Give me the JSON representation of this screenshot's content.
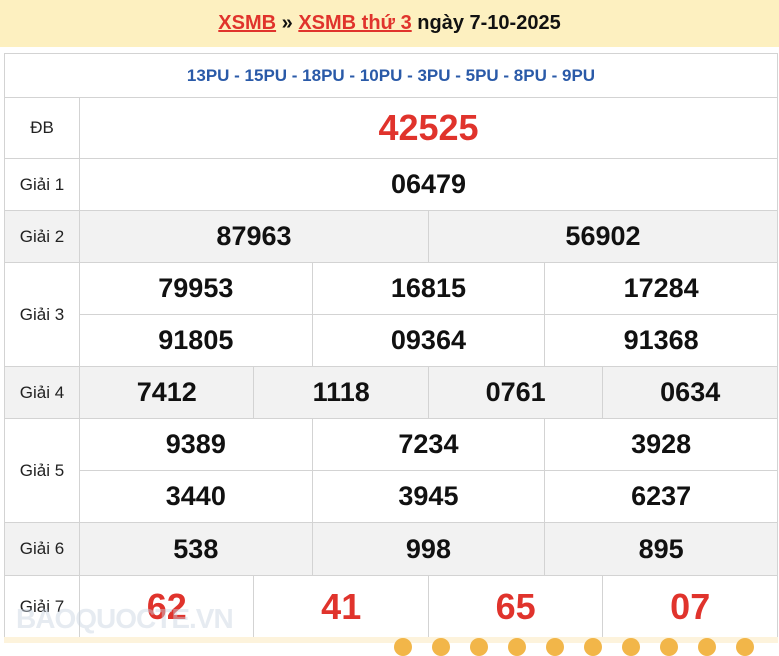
{
  "header": {
    "link1": "XSMB",
    "sep": "»",
    "link2": "XSMB thứ 3",
    "date_text": "ngày 7-10-2025"
  },
  "codes": "13PU - 15PU - 18PU - 10PU - 3PU - 5PU - 8PU - 9PU",
  "prizes": {
    "db": {
      "label": "ĐB",
      "numbers": [
        "42525"
      ]
    },
    "g1": {
      "label": "Giải 1",
      "numbers": [
        "06479"
      ]
    },
    "g2": {
      "label": "Giải 2",
      "numbers": [
        "87963",
        "56902"
      ]
    },
    "g3": {
      "label": "Giải 3",
      "numbers": [
        "79953",
        "16815",
        "17284",
        "91805",
        "09364",
        "91368"
      ]
    },
    "g4": {
      "label": "Giải 4",
      "numbers": [
        "7412",
        "1118",
        "0761",
        "0634"
      ]
    },
    "g5": {
      "label": "Giải 5",
      "numbers": [
        "9389",
        "7234",
        "3928",
        "3440",
        "3945",
        "6237"
      ]
    },
    "g6": {
      "label": "Giải 6",
      "numbers": [
        "538",
        "998",
        "895"
      ]
    },
    "g7": {
      "label": "Giải 7",
      "numbers": [
        "62",
        "41",
        "65",
        "07"
      ]
    }
  },
  "watermark": "BAOQUOCTE.VN",
  "colors": {
    "accent": "#e0332c",
    "codes": "#2a5aa8",
    "banner": "#fdf0c0"
  }
}
